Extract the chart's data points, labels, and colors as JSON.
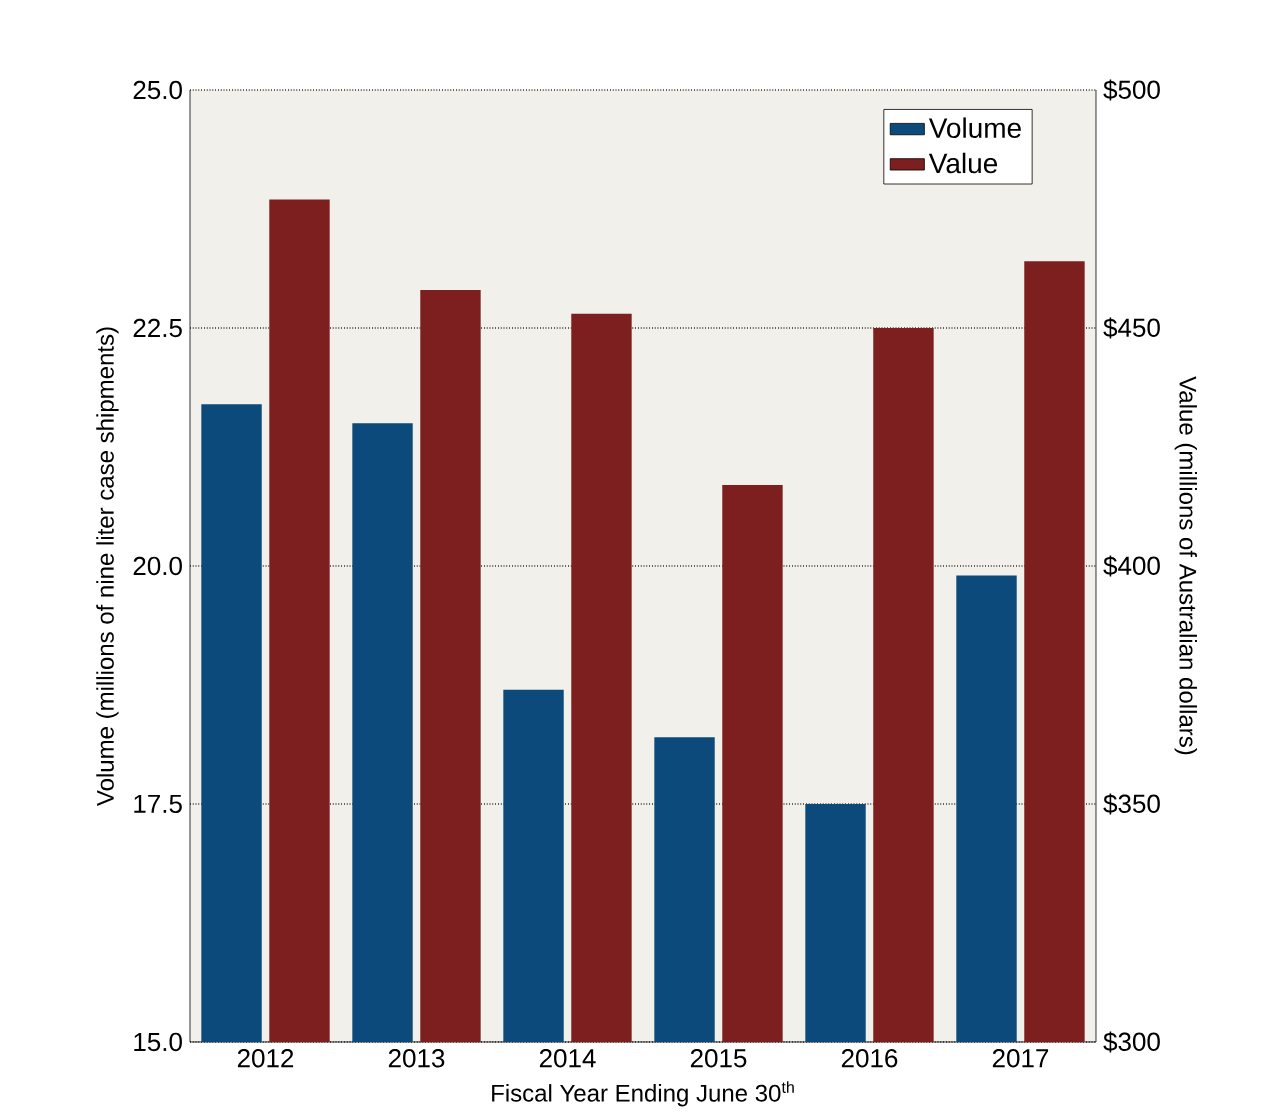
{
  "chart_data": {
    "type": "bar",
    "xlabel": "Fiscal Year Ending June 30$^{th}$",
    "ylabel": "Volume (millions of nine liter case shipments)",
    "y2label": "Value (millions of Australian dollars)",
    "categories": [
      "2012",
      "2013",
      "2014",
      "2015",
      "2016",
      "2017"
    ],
    "series": [
      {
        "name": "Volume",
        "color": "#0b4a7a",
        "values": [
          21.7,
          21.5,
          18.7,
          18.2,
          17.5,
          19.9
        ]
      },
      {
        "name": "Value",
        "color": "#7d1f1f",
        "axis": "y2",
        "values": [
          477,
          458,
          453,
          417,
          450,
          464
        ]
      }
    ],
    "ylim": [
      15,
      25
    ],
    "yticks": [
      {
        "value": 15,
        "label": "15.0"
      },
      17.5,
      {
        "value": 20,
        "label": "20.0"
      },
      22.5,
      {
        "value": 25,
        "label": "25.0"
      }
    ],
    "y2lim": [
      300,
      500
    ],
    "y2ticks": [
      {
        "value": 300,
        "label": "$300"
      },
      {
        "value": 350,
        "label": "$350"
      },
      {
        "value": 400,
        "label": "$400"
      },
      {
        "value": 450,
        "label": "$450"
      },
      {
        "value": 500,
        "label": "$500"
      }
    ],
    "grid": "y",
    "legend": "top right"
  }
}
